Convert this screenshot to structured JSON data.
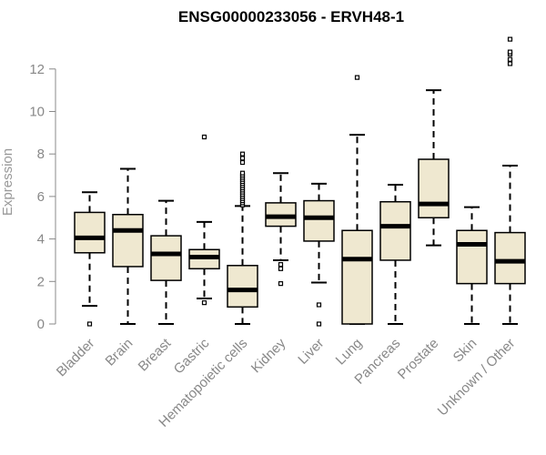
{
  "chart_data": {
    "type": "boxplot",
    "title": "ENSG00000233056 - ERVH48-1",
    "ylabel": "Expression",
    "xlabel": "",
    "ylim": [
      0,
      13.5
    ],
    "yticks": [
      0,
      2,
      4,
      6,
      8,
      10,
      12
    ],
    "box_fill": "#efe8d0",
    "categories": [
      "Bladder",
      "Brain",
      "Breast",
      "Gastric",
      "Hematopoietic cells",
      "Kidney",
      "Liver",
      "Lung",
      "Pancreas",
      "Prostate",
      "Skin",
      "Unknown / Other"
    ],
    "boxes": [
      {
        "whisker_low": 0.85,
        "q1": 3.35,
        "median": 4.05,
        "q3": 5.25,
        "whisker_high": 6.2,
        "outliers": [
          0.0
        ]
      },
      {
        "whisker_low": 0.0,
        "q1": 2.7,
        "median": 4.4,
        "q3": 5.15,
        "whisker_high": 7.3,
        "outliers": []
      },
      {
        "whisker_low": 0.0,
        "q1": 2.05,
        "median": 3.3,
        "q3": 4.15,
        "whisker_high": 5.8,
        "outliers": []
      },
      {
        "whisker_low": 1.2,
        "q1": 2.6,
        "median": 3.15,
        "q3": 3.5,
        "whisker_high": 4.8,
        "outliers": [
          1.0,
          8.8
        ]
      },
      {
        "whisker_low": 0.0,
        "q1": 0.8,
        "median": 1.6,
        "q3": 2.75,
        "whisker_high": 5.55,
        "outliers": [
          5.6,
          5.7,
          5.8,
          5.9,
          6.0,
          6.1,
          6.2,
          6.3,
          6.4,
          6.5,
          6.6,
          6.7,
          6.8,
          6.9,
          7.0,
          7.1,
          7.6,
          7.8,
          8.0
        ]
      },
      {
        "whisker_low": 3.0,
        "q1": 4.6,
        "median": 5.05,
        "q3": 5.7,
        "whisker_high": 7.1,
        "outliers": [
          1.9,
          2.6,
          2.8
        ]
      },
      {
        "whisker_low": 1.95,
        "q1": 3.9,
        "median": 5.0,
        "q3": 5.8,
        "whisker_high": 6.6,
        "outliers": [
          0.0,
          0.9
        ]
      },
      {
        "whisker_low": 0.0,
        "q1": 0.0,
        "median": 3.05,
        "q3": 4.4,
        "whisker_high": 8.9,
        "outliers": [
          11.6
        ]
      },
      {
        "whisker_low": 0.0,
        "q1": 3.0,
        "median": 4.6,
        "q3": 5.75,
        "whisker_high": 6.55,
        "outliers": []
      },
      {
        "whisker_low": 3.7,
        "q1": 5.0,
        "median": 5.65,
        "q3": 7.75,
        "whisker_high": 11.0,
        "outliers": []
      },
      {
        "whisker_low": 0.0,
        "q1": 1.9,
        "median": 3.75,
        "q3": 4.4,
        "whisker_high": 5.5,
        "outliers": []
      },
      {
        "whisker_low": 0.0,
        "q1": 1.9,
        "median": 2.95,
        "q3": 4.3,
        "whisker_high": 7.45,
        "outliers": [
          12.25,
          12.45,
          12.7,
          12.8,
          13.4
        ]
      }
    ]
  }
}
